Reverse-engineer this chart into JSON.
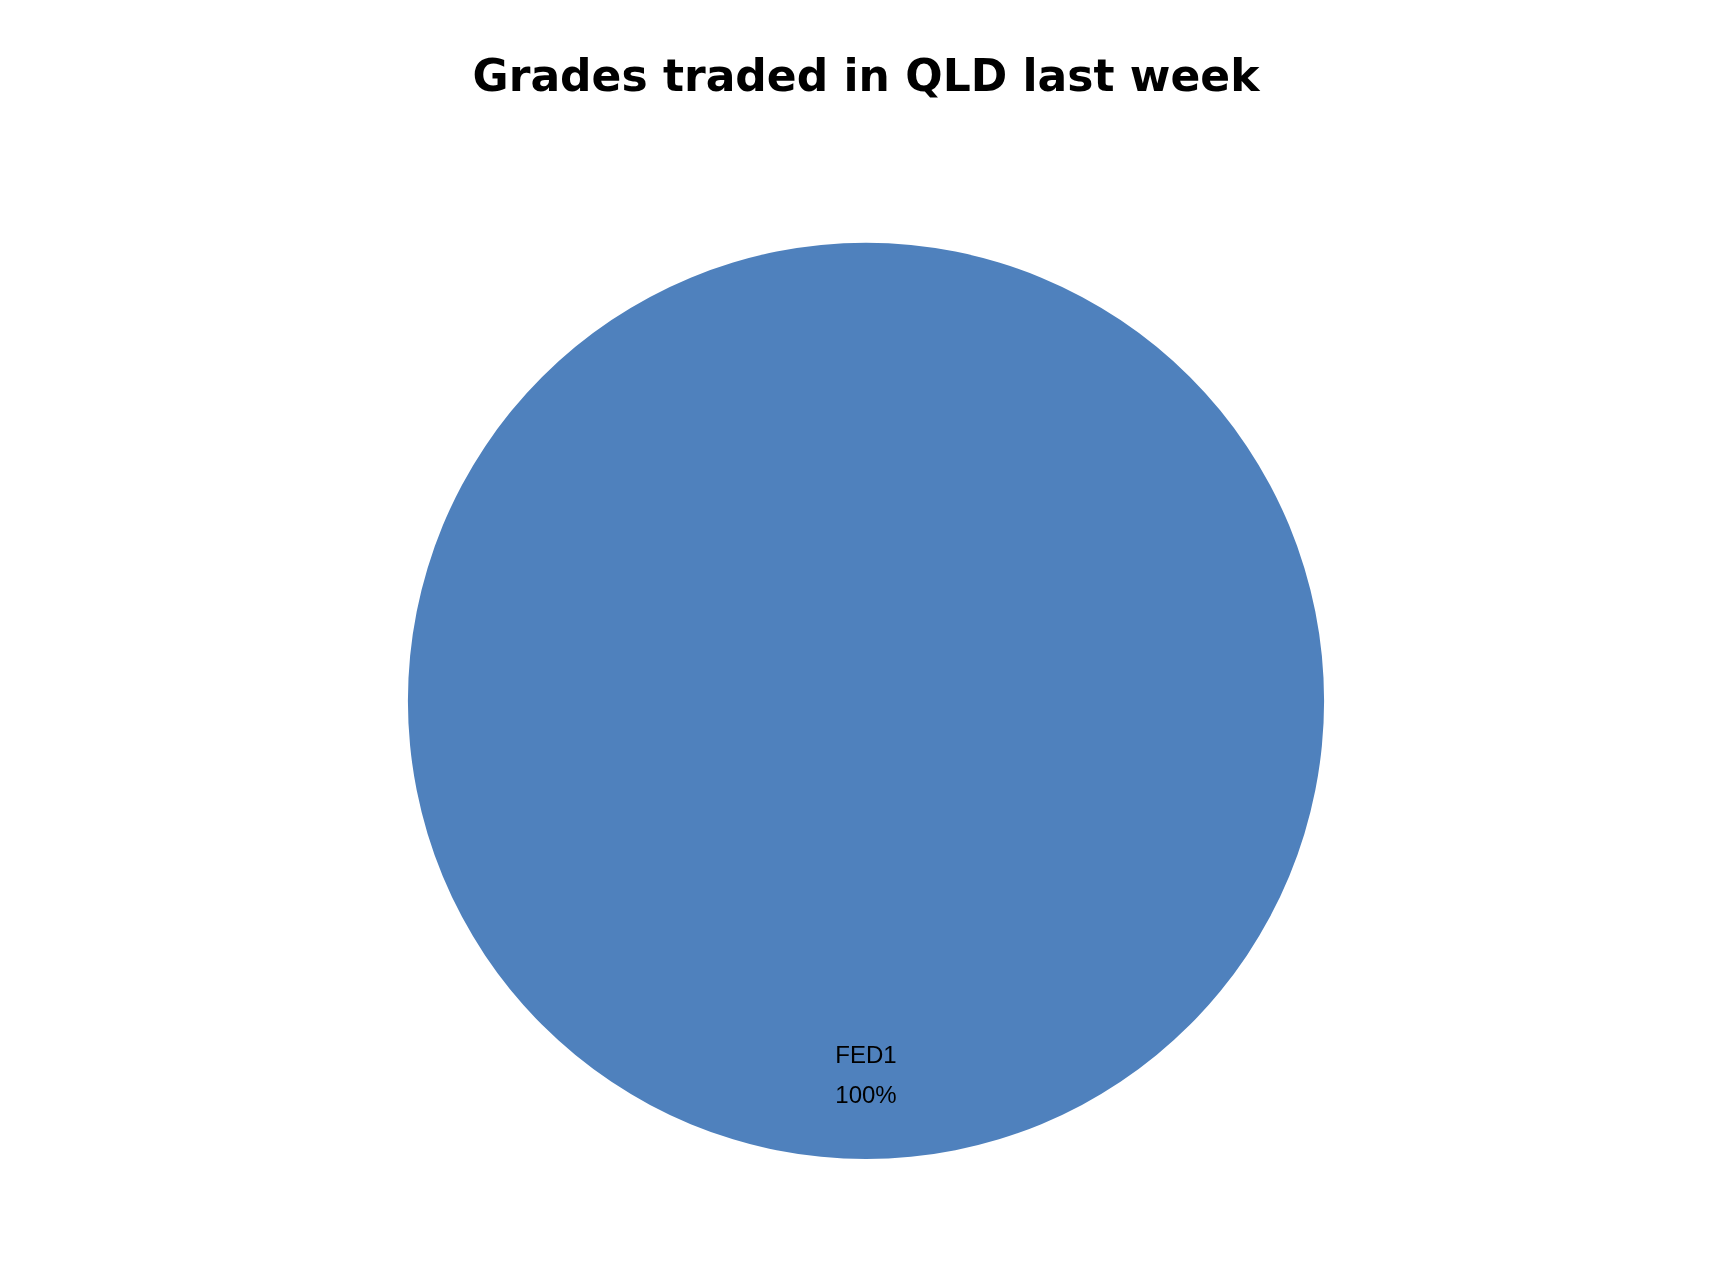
{
  "chart_data": {
    "type": "pie",
    "title": "Grades traded in QLD last week",
    "categories": [
      "FED1"
    ],
    "values": [
      100
    ],
    "colors": [
      "#4f81bd"
    ],
    "value_labels": [
      "100%"
    ],
    "legend": false
  }
}
